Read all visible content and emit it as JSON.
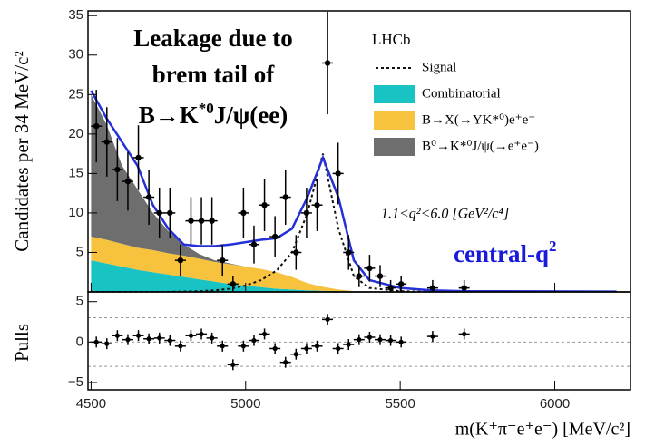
{
  "chart_data": [
    {
      "type": "fit",
      "ylabel": "Candidates per 34 MeV/c²",
      "xlim": [
        4490,
        6245
      ],
      "ylim": [
        0,
        35.6
      ],
      "yticks": [
        5,
        10,
        15,
        20,
        25,
        30,
        35
      ],
      "x": [
        4500,
        4550,
        4600,
        4650,
        4700,
        4750,
        4800,
        4850,
        4900,
        4950,
        5000,
        5050,
        5100,
        5150,
        5200,
        5250,
        5300,
        5350,
        5400,
        5500,
        5600,
        5700,
        6200
      ],
      "series": [
        {
          "name": "Signal",
          "style": "dotted",
          "color": "#111111",
          "values": [
            0,
            0,
            0,
            0,
            0,
            0,
            0.05,
            0.1,
            0.2,
            0.4,
            0.8,
            1.5,
            2.7,
            5,
            10,
            17.5,
            8,
            2,
            0.5,
            0.1,
            0,
            0,
            0
          ]
        },
        {
          "name": "Combinatorial",
          "style": "area",
          "color": "#19c3c3",
          "values": [
            4,
            3.6,
            3.2,
            2.8,
            2.5,
            2.2,
            1.9,
            1.6,
            1.3,
            1.0,
            0.8,
            0.6,
            0.4,
            0.3,
            0.2,
            0.15,
            0.1,
            0.05,
            0,
            0,
            0,
            0,
            0
          ]
        },
        {
          "name": "B→X(→YK*⁰)e⁺e⁻",
          "style": "area",
          "color": "#f7c23d",
          "values": [
            3,
            3,
            2.9,
            2.8,
            2.8,
            2.7,
            2.7,
            2.6,
            2.5,
            2.5,
            2.4,
            2.3,
            2.1,
            1.6,
            0.9,
            0.5,
            0.2,
            0.05,
            0,
            0,
            0,
            0,
            0
          ]
        },
        {
          "name": "B⁰→K*⁰J/ψ(→e⁺e⁻)",
          "style": "area",
          "color": "#6e6e6e",
          "values": [
            18,
            14.6,
            9.9,
            7.4,
            4.7,
            2.8,
            1.4,
            0.6,
            0.2,
            0.1,
            0,
            0,
            0,
            0,
            0,
            0,
            0,
            0,
            0,
            0,
            0,
            0,
            0
          ]
        },
        {
          "style": "line",
          "color": "#2430d8",
          "values": [
            25.5,
            22,
            19,
            16,
            11,
            8,
            6,
            5.8,
            5.8,
            6,
            6.3,
            6.6,
            6.8,
            8,
            12,
            17,
            12,
            4,
            1.5,
            0.5,
            0.2,
            0.1,
            0.05
          ]
        }
      ],
      "points": {
        "x": [
          4517,
          4551,
          4585,
          4619,
          4653,
          4687,
          4721,
          4755,
          4789,
          4823,
          4857,
          4891,
          4925,
          4959,
          4993,
          5027,
          5061,
          5095,
          5129,
          5163,
          5197,
          5231,
          5265,
          5299,
          5333,
          5367,
          5401,
          5435,
          5469,
          5503,
          5605,
          5707
        ],
        "values": [
          21,
          19,
          15.5,
          14,
          17,
          12,
          10,
          10,
          4,
          9,
          9,
          9,
          4,
          1,
          10,
          6,
          11,
          7,
          12,
          5,
          10,
          11,
          29,
          15,
          5,
          2,
          3,
          2,
          0.5,
          1,
          0.5,
          0.5
        ],
        "errors": [
          4.6,
          4.4,
          4,
          3.7,
          4.1,
          3.5,
          3.2,
          3.2,
          2,
          3,
          3,
          3,
          2,
          1,
          3.2,
          2.4,
          3.3,
          2.6,
          3.5,
          2.2,
          3.2,
          3.3,
          6.5,
          3.9,
          2.2,
          1.4,
          1.7,
          1.4,
          1,
          1,
          1,
          1
        ]
      },
      "legend_title": "LHCb",
      "selection": "1.1<q²<6.0 [GeV²/c⁴]",
      "annotation": {
        "lines": [
          "Leakage due to",
          "brem tail of"
        ],
        "formula": [
          "B→K",
          "*0",
          "J/ψ(ee)"
        ]
      },
      "label": [
        "central-q",
        "2"
      ]
    },
    {
      "type": "scatter",
      "ylabel": "Pulls",
      "xlabel": "m(K⁺π⁻e⁺e⁻) [MeV/c²]",
      "xlim": [
        4490,
        6245
      ],
      "xticks": [
        4500,
        5000,
        5500,
        6000
      ],
      "ylim": [
        -5.9,
        6.2
      ],
      "yticks": [
        {
          "value": -5,
          "label": "−5"
        },
        0,
        5
      ],
      "reference_lines": [
        -3,
        0,
        3
      ],
      "x": [
        4517,
        4551,
        4585,
        4619,
        4653,
        4687,
        4721,
        4755,
        4789,
        4823,
        4857,
        4891,
        4925,
        4959,
        4993,
        5027,
        5061,
        5095,
        5129,
        5163,
        5197,
        5231,
        5265,
        5299,
        5333,
        5367,
        5401,
        5435,
        5469,
        5503,
        5605,
        5707
      ],
      "values": [
        0,
        -0.2,
        0.8,
        0.3,
        0.8,
        0.4,
        0.5,
        0.2,
        -0.5,
        0.8,
        1,
        0.5,
        -0.5,
        -2.8,
        -0.5,
        0.2,
        1,
        -0.8,
        -2.5,
        -1.5,
        -0.8,
        -0.5,
        2.8,
        -0.8,
        -0.3,
        0.3,
        0.6,
        0.3,
        0.2,
        0,
        0.7,
        1
      ]
    }
  ]
}
